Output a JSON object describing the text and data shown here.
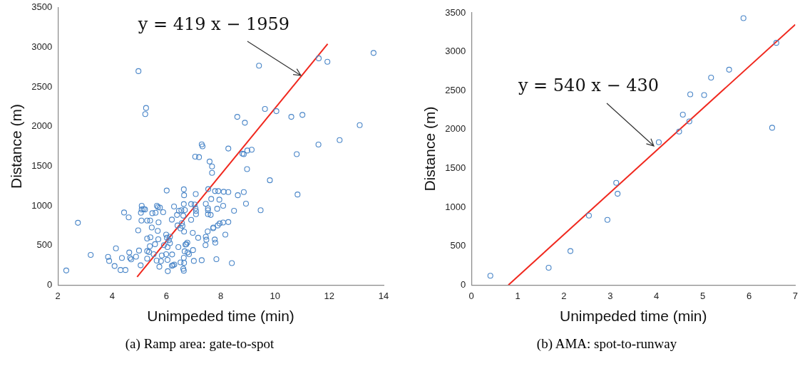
{
  "chart_data": [
    {
      "type": "scatter",
      "title": "(a) Ramp area: gate-to-spot",
      "xlabel": "Unimpeded time (min)",
      "ylabel": "Distance (m)",
      "xlim": [
        2,
        14
      ],
      "xticks": [
        2,
        4,
        6,
        8,
        10,
        12,
        14
      ],
      "ylim": [
        0,
        3500
      ],
      "yticks": [
        0,
        500,
        1000,
        1500,
        2000,
        2500,
        3000,
        3500
      ],
      "grid": false,
      "legend": false,
      "annotations": [
        {
          "text": "y = 419 x − 1959",
          "x": 10.95,
          "y": 2644
        }
      ],
      "series": [
        {
          "type": "scatter",
          "marker": "circle",
          "color": "#4a86c8",
          "x": [
            4.97,
            5.25,
            5.22,
            2.31,
            2.74,
            3.21,
            3.85,
            3.89,
            4.09,
            4.14,
            4.31,
            4.49,
            4.36,
            4.44,
            4.61,
            4.63,
            4.66,
            4.7,
            4.88,
            4.96,
            4.99,
            5.05,
            5.09,
            5.09,
            5.16,
            5.06,
            5.21,
            5.08,
            5.29,
            5.29,
            5.29,
            5.29,
            5.4,
            5.46,
            5.48,
            5.41,
            5.39,
            5.36,
            5.53,
            5.58,
            5.6,
            5.65,
            5.69,
            5.76,
            5.68,
            5.7,
            5.64,
            5.74,
            5.8,
            5.83,
            5.88,
            5.71,
            5.91,
            5.99,
            6.01,
            6.02,
            6.13,
            6.09,
            6.13,
            6.04,
            5.99,
            6.04,
            6.05,
            6.2,
            6.24,
            6.29,
            6.21,
            6.2,
            6.28,
            6.39,
            6.44,
            6.46,
            6.55,
            6.41,
            6.52,
            6.57,
            6.59,
            6.64,
            6.65,
            6.64,
            6.68,
            6.62,
            6.65,
            6.7,
            6.73,
            6.77,
            6.67,
            6.78,
            6.83,
            6.64,
            6.65,
            6.62,
            6.64,
            6.52,
            6.91,
            6.97,
            6.91,
            7.04,
            7.07,
            7.09,
            7.09,
            7.08,
            6.98,
            7.01,
            7.17,
            7.3,
            7.3,
            7.33,
            7.06,
            7.2,
            7.44,
            7.47,
            7.45,
            7.52,
            7.45,
            7.53,
            7.53,
            7.53,
            7.63,
            7.65,
            7.54,
            7.59,
            7.68,
            7.68,
            7.72,
            13.63,
            11.61,
            11.93,
            9.41,
            9.63,
            10.05,
            8.61,
            8.89,
            10.6,
            11.01,
            13.12,
            12.38,
            11.6,
            10.8,
            8.28,
            8.8,
            8.85,
            8.98,
            9.14,
            8.97,
            9.81,
            10.83,
            7.79,
            7.91,
            8.11,
            8.28,
            7.95,
            8.09,
            7.87,
            8.63,
            8.85,
            8.93,
            8.49,
            9.47,
            7.73,
            7.89,
            7.96,
            8.09,
            8.28,
            8.17,
            7.78,
            7.8,
            8.41,
            7.84
          ],
          "values": [
            2699,
            2234,
            2157,
            183,
            785,
            379,
            354,
            304,
            239,
            462,
            189,
            189,
            341,
            915,
            853,
            410,
            341,
            323,
            357,
            689,
            434,
            248,
            999,
            953,
            959,
            912,
            953,
            813,
            428,
            332,
            586,
            813,
            813,
            726,
            906,
            602,
            490,
            416,
            388,
            515,
            912,
            999,
            984,
            977,
            683,
            577,
            307,
            230,
            301,
            372,
            918,
            791,
            503,
            636,
            1192,
            596,
            608,
            565,
            528,
            478,
            388,
            316,
            174,
            242,
            248,
            258,
            385,
            825,
            990,
            884,
            478,
            937,
            943,
            751,
            714,
            782,
            745,
            1021,
            1133,
            1207,
            946,
            875,
            673,
            509,
            515,
            534,
            425,
            410,
            388,
            344,
            279,
            205,
            180,
            285,
            822,
            658,
            1021,
            1015,
            968,
            934,
            894,
            1148,
            441,
            304,
            596,
            313,
            1775,
            1750,
            1620,
            1614,
            503,
            571,
            608,
            676,
            1024,
            968,
            943,
            894,
            884,
            1086,
            1210,
            1558,
            1496,
            1415,
            717,
            2929,
            2861,
            2818,
            2768,
            2222,
            2194,
            2122,
            2048,
            2122,
            2147,
            2017,
            1828,
            1772,
            1651,
            1722,
            1657,
            1651,
            1697,
            1707,
            1462,
            1322,
            1142,
            1185,
            1185,
            1176,
            1173,
            1077,
            999,
            962,
            1133,
            1173,
            1027,
            937,
            943,
            726,
            751,
            776,
            788,
            794,
            636,
            574,
            534,
            276,
            326
          ]
        },
        {
          "type": "line",
          "color": "#f0281e",
          "x": [
            4.92,
            11.94
          ],
          "values": [
            102,
            3044
          ]
        }
      ]
    },
    {
      "type": "scatter",
      "title": "(b) AMA: spot-to-runway",
      "xlabel": "Unimpeded time (min)",
      "ylabel": "Distance (m)",
      "xlim": [
        0,
        7
      ],
      "xticks": [
        0,
        1,
        2,
        3,
        4,
        5,
        6,
        7
      ],
      "ylim": [
        0,
        3500
      ],
      "yticks": [
        0,
        500,
        1000,
        1500,
        2000,
        2500,
        3000,
        3500
      ],
      "grid": false,
      "legend": false,
      "annotations": [
        {
          "text": "y = 540 x − 430",
          "x": 3.95,
          "y": 1790
        }
      ],
      "series": [
        {
          "type": "scatter",
          "marker": "circle",
          "color": "#4a86c8",
          "x": [
            0.41,
            1.67,
            2.14,
            2.54,
            2.94,
            3.13,
            3.16,
            4.05,
            4.49,
            4.57,
            4.71,
            4.73,
            5.03,
            5.18,
            5.57,
            5.88,
            6.5,
            6.59
          ],
          "values": [
            118,
            221,
            436,
            893,
            837,
            1313,
            1173,
            1836,
            1973,
            2190,
            2103,
            2452,
            2442,
            2666,
            2769,
            3432,
            2022,
            3114
          ]
        },
        {
          "type": "line",
          "color": "#f0281e",
          "x": [
            0.8,
            7
          ],
          "values": [
            0,
            3350
          ]
        }
      ]
    }
  ]
}
